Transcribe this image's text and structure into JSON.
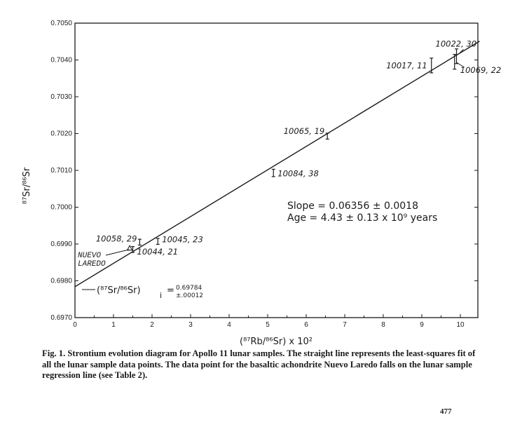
{
  "chart_data": {
    "type": "scatter",
    "title": "",
    "xlabel": "(⁸⁷Rb/⁸⁶Sr) x 10²",
    "ylabel": "⁸⁷Sr/⁸⁶Sr",
    "xlim": [
      0,
      10.5
    ],
    "ylim": [
      0.697,
      0.705
    ],
    "x_ticks": [
      "0",
      "1",
      "2",
      "3",
      "4",
      "5",
      "6",
      "7",
      "8",
      "9",
      "10"
    ],
    "y_ticks": [
      "0.6970",
      "0.6980",
      "0.6990",
      "0.7000",
      "0.7010",
      "0.7020",
      "0.7030",
      "0.7040",
      "0.7050"
    ],
    "grid": false,
    "points": [
      {
        "label": "10058, 29",
        "x": 1.68,
        "y": 0.69905,
        "err": 8e-05
      },
      {
        "label": "10045, 23",
        "x": 2.15,
        "y": 0.69907,
        "err": 8e-05
      },
      {
        "label": "10044, 21",
        "x": 1.5,
        "y": 0.69885,
        "err": 8e-05
      },
      {
        "label": "10084, 38",
        "x": 5.15,
        "y": 0.70093,
        "err": 0.0001
      },
      {
        "label": "10065, 19",
        "x": 6.55,
        "y": 0.70193,
        "err": 8e-05
      },
      {
        "label": "10017, 11",
        "x": 9.25,
        "y": 0.70385,
        "err": 0.0002
      },
      {
        "label": "10022, 30",
        "x": 9.9,
        "y": 0.7041,
        "err": 0.0002
      },
      {
        "label": "10069, 22",
        "x": 9.85,
        "y": 0.70395,
        "err": 0.0002
      }
    ],
    "meteorite_label": [
      "NUEVO",
      "LAREDO"
    ],
    "meteorite_point": {
      "x": 1.42,
      "y": 0.69888
    },
    "fit_line": {
      "x": [
        0,
        10.5
      ],
      "y": [
        0.69784,
        0.70451
      ]
    },
    "slope_text": "Slope = 0.06356 ± 0.0018",
    "age_text": "Age = 4.43 ± 0.13 x 10⁹ years",
    "intercept_label": "(⁸⁷Sr/⁸⁶Sr)",
    "intercept_subscript": "i",
    "intercept_value": "0.69784",
    "intercept_error": "±.00012"
  },
  "caption": "Fig. 1. Strontium evolution diagram for Apollo 11 lunar samples. The straight line represents the least-squares fit of all the lunar sample data points. The data point for the basaltic achondrite Nuevo Laredo falls on the lunar sample regression line (see Table 2).",
  "page_number": "477"
}
